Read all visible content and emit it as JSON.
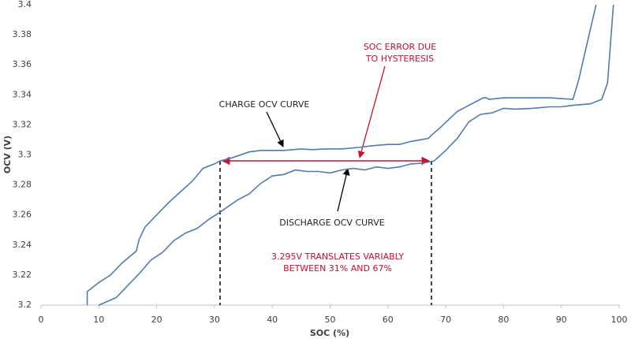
{
  "chart_data": {
    "type": "line",
    "x_label": "SOC (%)",
    "y_label": "OCV (V)",
    "xlim": [
      0,
      100
    ],
    "xticks": [
      0,
      10,
      20,
      30,
      40,
      50,
      60,
      70,
      80,
      90,
      100
    ],
    "ylim": [
      3.2,
      3.4
    ],
    "yticks": [
      3.2,
      3.22,
      3.24,
      3.26,
      3.28,
      3.3,
      3.32,
      3.34,
      3.36,
      3.38,
      3.4
    ],
    "grid": false,
    "series": [
      {
        "name": "CHARGE OCV CURVE",
        "color": "#4f7cac",
        "x": [
          8,
          8,
          10,
          12,
          14,
          16.5,
          16.8,
          17,
          18,
          20,
          22,
          24,
          26,
          26.5,
          28,
          30,
          31,
          33,
          36,
          38,
          42,
          45,
          47,
          49,
          52,
          55,
          57,
          60,
          62,
          64,
          67,
          67.5,
          69,
          72,
          75,
          76.5,
          77,
          77.5,
          80,
          85,
          88,
          92,
          93,
          96
        ],
        "values": [
          3.2,
          3.209,
          3.215,
          3.22,
          3.228,
          3.236,
          3.241,
          3.244,
          3.252,
          3.26,
          3.268,
          3.275,
          3.282,
          3.284,
          3.291,
          3.294,
          3.296,
          3.298,
          3.302,
          3.303,
          3.303,
          3.304,
          3.3035,
          3.304,
          3.304,
          3.305,
          3.306,
          3.307,
          3.307,
          3.309,
          3.311,
          3.313,
          3.318,
          3.329,
          3.335,
          3.338,
          3.338,
          3.337,
          3.338,
          3.338,
          3.338,
          3.337,
          3.35,
          3.4
        ]
      },
      {
        "name": "DISCHARGE OCV CURVE",
        "color": "#4f7cac",
        "x": [
          10,
          13,
          15,
          17,
          19,
          21,
          23,
          25,
          27,
          29,
          31,
          34,
          36,
          38,
          40,
          42,
          44,
          46,
          48,
          50,
          52,
          54,
          56,
          58,
          60,
          62,
          64,
          66,
          68,
          70,
          72,
          74,
          76,
          78,
          80,
          82,
          85,
          88,
          90,
          92,
          95,
          97,
          98,
          99
        ],
        "values": [
          3.2,
          3.205,
          3.213,
          3.221,
          3.23,
          3.235,
          3.243,
          3.248,
          3.251,
          3.257,
          3.262,
          3.27,
          3.274,
          3.281,
          3.286,
          3.287,
          3.29,
          3.289,
          3.289,
          3.288,
          3.29,
          3.291,
          3.29,
          3.292,
          3.291,
          3.292,
          3.294,
          3.2945,
          3.296,
          3.303,
          3.311,
          3.322,
          3.327,
          3.328,
          3.331,
          3.3305,
          3.331,
          3.332,
          3.332,
          3.333,
          3.334,
          3.337,
          3.348,
          3.4
        ]
      }
    ],
    "annotations": {
      "hysteresis": [
        "SOC ERROR DUE",
        "TO HYSTERESIS"
      ],
      "translation": [
        "3.295V TRANSLATES VARIABLY",
        "BETWEEN 31% AND 67%"
      ]
    }
  }
}
